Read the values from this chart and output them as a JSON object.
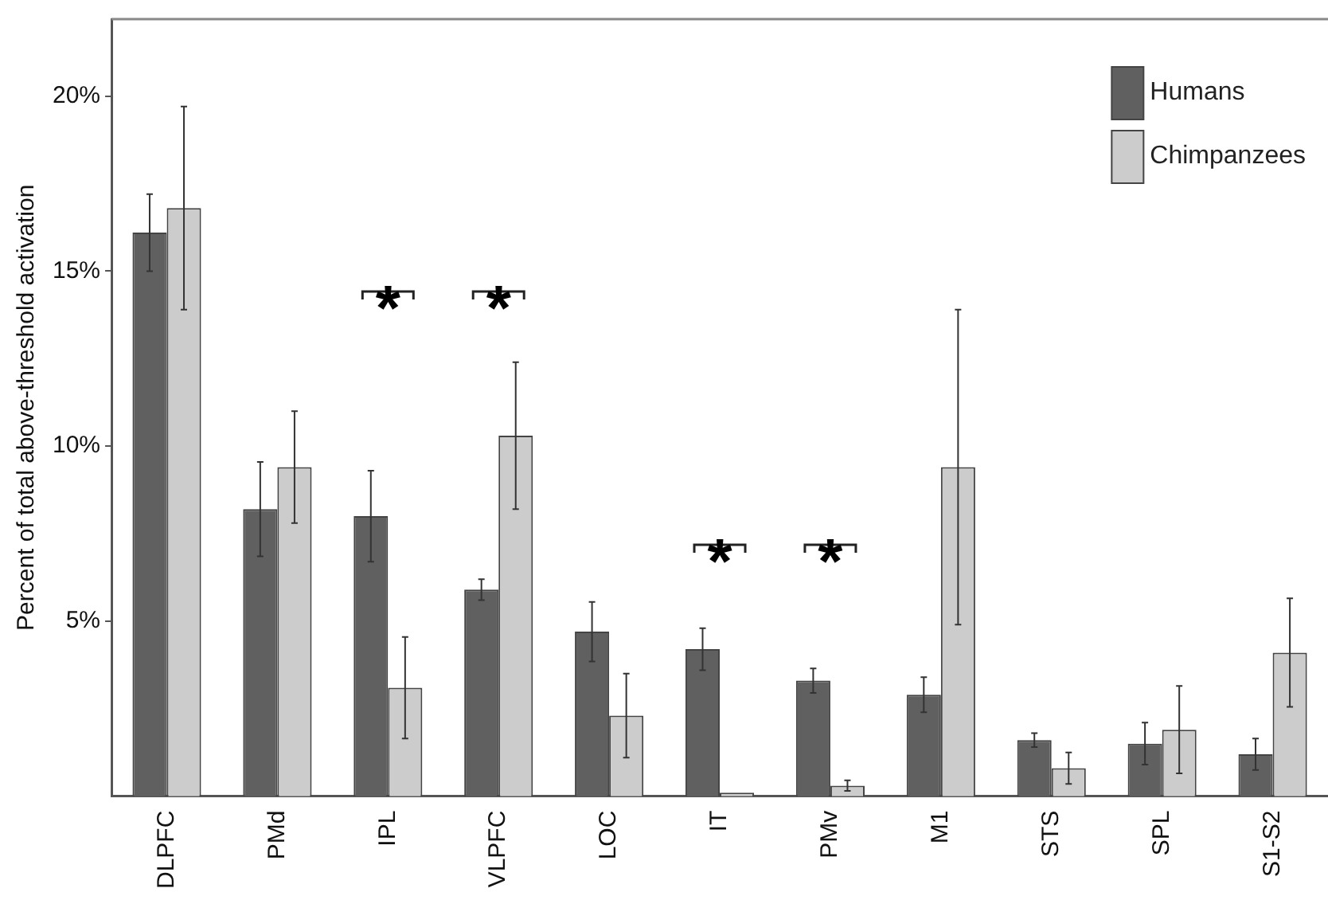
{
  "chart_data": {
    "type": "bar",
    "ylabel": "Percent of total above-threshold activation",
    "categories": [
      "DLPFC",
      "PMd",
      "IPL",
      "VLPFC",
      "LOC",
      "IT",
      "PMv",
      "M1",
      "STS",
      "SPL",
      "S1-S2"
    ],
    "series": [
      {
        "name": "Humans",
        "color": "#606060",
        "values": [
          16.1,
          8.2,
          8.0,
          5.9,
          4.7,
          4.2,
          3.3,
          2.9,
          1.6,
          1.5,
          1.2
        ],
        "errors": [
          1.1,
          1.35,
          1.3,
          0.3,
          0.85,
          0.6,
          0.35,
          0.5,
          0.2,
          0.6,
          0.45
        ]
      },
      {
        "name": "Chimpanzees",
        "color": "#cccccc",
        "values": [
          16.8,
          9.4,
          3.1,
          10.3,
          2.3,
          0.1,
          0.3,
          9.4,
          0.8,
          1.9,
          4.1
        ],
        "errors": [
          2.9,
          1.6,
          1.45,
          2.1,
          1.2,
          null,
          0.15,
          4.5,
          0.45,
          1.25,
          1.55
        ]
      }
    ],
    "ylim": [
      0,
      22.2
    ],
    "yticks": [
      {
        "value": 5,
        "label": "5%"
      },
      {
        "value": 10,
        "label": "10%"
      },
      {
        "value": 15,
        "label": "15%"
      },
      {
        "value": 20,
        "label": "20%"
      }
    ],
    "grid": false,
    "legend": "top right",
    "annotations": [
      "*",
      "*",
      "*",
      "*"
    ]
  }
}
